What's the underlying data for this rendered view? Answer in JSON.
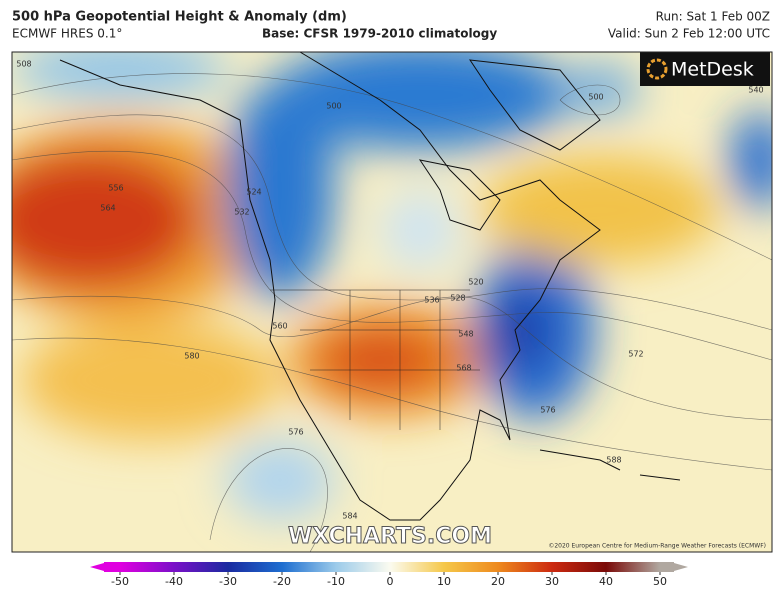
{
  "header": {
    "title": "500 hPa Geopotential Height & Anomaly (dm)",
    "model": "ECMWF HRES 0.1°",
    "base": "Base: CFSR 1979-2010 climatology",
    "run": "Run: Sat 1 Feb 00Z",
    "valid": "Valid: Sun 2 Feb 12:00 UTC"
  },
  "map": {
    "logo": "MetDesk",
    "watermark": "WXCHARTS.COM",
    "copyright": "©2020 European Centre for Medium-Range Weather Forecasts (ECMWF)",
    "contour_labels": [
      508,
      556,
      564,
      532,
      524,
      500,
      500,
      540,
      560,
      580,
      536,
      528,
      520,
      548,
      568,
      576,
      572,
      588,
      576,
      584
    ]
  },
  "colorbar": {
    "ticks": [
      -50,
      -40,
      -30,
      -20,
      -10,
      0,
      10,
      20,
      30,
      40,
      50
    ],
    "colors": [
      "#e000e0",
      "#7a10c8",
      "#1a2aa0",
      "#1e6ed0",
      "#9ccbea",
      "#fbfbf0",
      "#f5c84a",
      "#ee8a1e",
      "#cc2a10",
      "#7a0a08",
      "#b0a8a0"
    ]
  }
}
